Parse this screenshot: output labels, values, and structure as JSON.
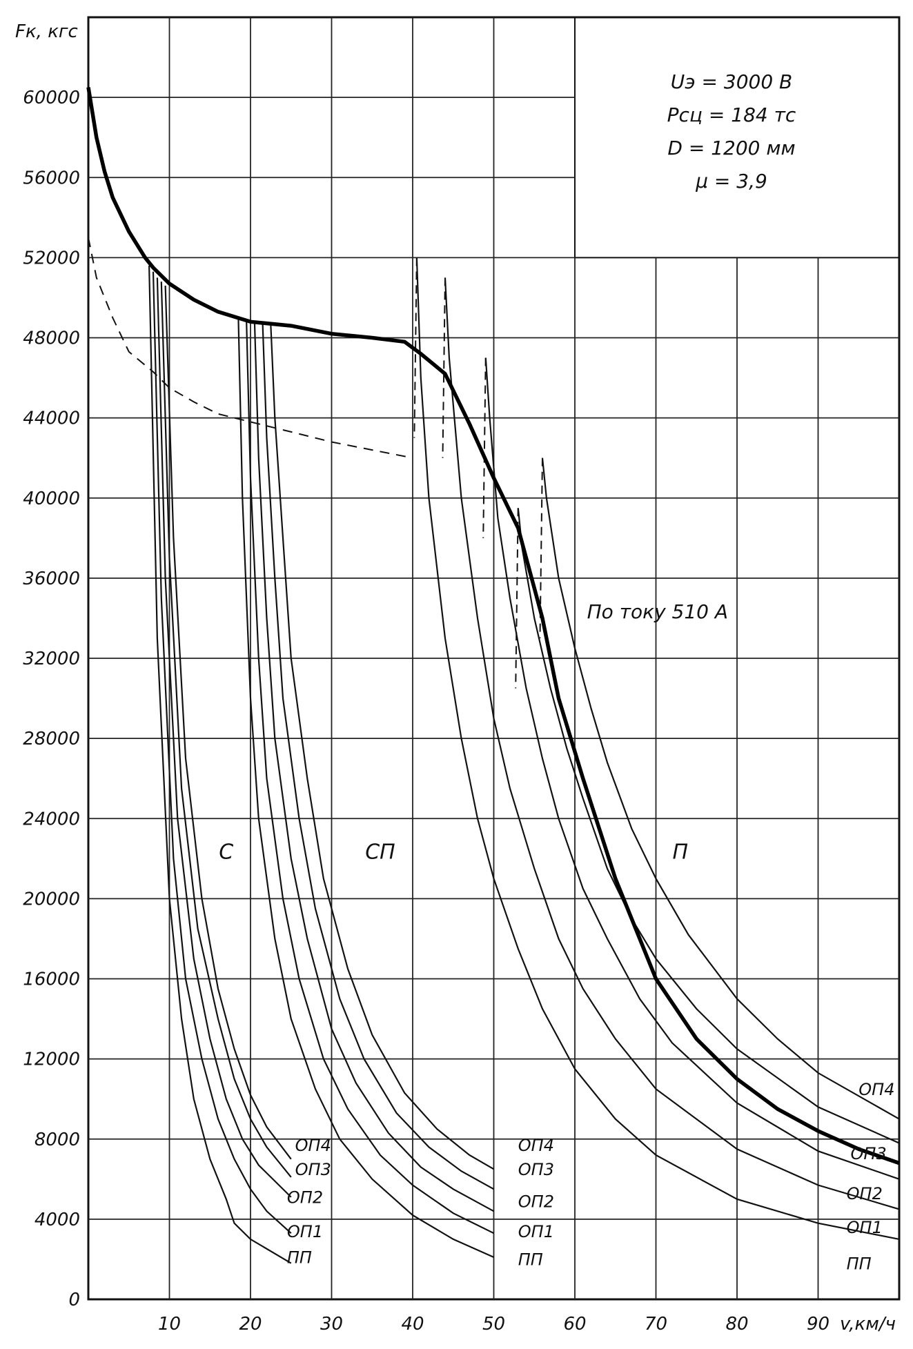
{
  "chart_data": {
    "type": "line",
    "title": "",
    "xlabel": "v,км/ч",
    "ylabel": "Fк, кгс",
    "xlim": [
      0,
      100
    ],
    "ylim": [
      0,
      64000
    ],
    "grid": true,
    "x_ticks": [
      "10",
      "20",
      "30",
      "40",
      "50",
      "60",
      "70",
      "80",
      "90"
    ],
    "y_ticks": [
      "0",
      "4000",
      "8000",
      "12000",
      "16000",
      "20000",
      "24000",
      "28000",
      "32000",
      "36000",
      "40000",
      "44000",
      "48000",
      "52000",
      "56000",
      "60000"
    ],
    "parameters": [
      "Uэ = 3000 В",
      "Pсц = 184 тс",
      "D = 1200 мм",
      "μ = 3,9"
    ],
    "annotations": {
      "current_limit": "По току 510 А"
    },
    "regions": [
      {
        "label": "С",
        "x": 17,
        "y": 22000
      },
      {
        "label": "СП",
        "x": 36,
        "y": 22000
      },
      {
        "label": "П",
        "x": 73,
        "y": 22000
      }
    ],
    "limit_curve": {
      "x": [
        0,
        1,
        2,
        3,
        5,
        7,
        8,
        10,
        13,
        16,
        20,
        25,
        30,
        35,
        39,
        41,
        44,
        47,
        50,
        53,
        56,
        58,
        61,
        65,
        70,
        75,
        80,
        85,
        90,
        95,
        100
      ],
      "y": [
        60500,
        58000,
        56300,
        55000,
        53300,
        52000,
        51500,
        50700,
        49900,
        49300,
        48800,
        48600,
        48200,
        48000,
        47800,
        47200,
        46200,
        43700,
        41000,
        38500,
        34000,
        30000,
        26000,
        21000,
        16000,
        13000,
        11000,
        9500,
        8400,
        7500,
        6800
      ]
    },
    "dashed_curve": {
      "x": [
        0,
        1,
        3,
        5,
        8,
        10,
        13,
        16,
        20,
        25,
        30,
        35,
        40
      ],
      "y": [
        53000,
        51000,
        49000,
        47300,
        46300,
        45500,
        44800,
        44200,
        43800,
        43300,
        42800,
        42400,
        42000
      ]
    },
    "groups": [
      {
        "name": "С",
        "curves": [
          {
            "name": "ПП",
            "x": [
              7.5,
              8.5,
              10,
              11.5,
              13,
              15,
              17,
              18,
              20,
              25
            ],
            "y": [
              51600,
              33000,
              20000,
              14000,
              10000,
              7000,
              5000,
              3800,
              3000,
              1800
            ]
          },
          {
            "name": "ОП1",
            "x": [
              8,
              9,
              10.5,
              12,
              14,
              16,
              18,
              20,
              22,
              25
            ],
            "y": [
              51300,
              35000,
              22000,
              16000,
              12000,
              9000,
              7000,
              5500,
              4400,
              3300
            ]
          },
          {
            "name": "ОП2",
            "x": [
              8.5,
              9.5,
              11,
              13,
              15,
              17,
              19,
              21,
              25
            ],
            "y": [
              51000,
              36000,
              24000,
              17000,
              13000,
              10000,
              8000,
              6700,
              5100
            ]
          },
          {
            "name": "ОП3",
            "x": [
              9,
              10,
              11.5,
              13.5,
              16,
              18,
              20,
              22,
              25
            ],
            "y": [
              50800,
              37000,
              25500,
              18500,
              14000,
              11000,
              9000,
              7600,
              6100
            ]
          },
          {
            "name": "ОП4",
            "x": [
              9.5,
              10.5,
              12,
              14,
              16,
              18,
              20,
              22,
              25
            ],
            "y": [
              50600,
              38000,
              27000,
              20000,
              15500,
              12500,
              10200,
              8600,
              7000
            ]
          }
        ]
      },
      {
        "name": "СП",
        "curves": [
          {
            "name": "ПП",
            "x": [
              18.5,
              19,
              20,
              21,
              23,
              25,
              28,
              31,
              35,
              40,
              45,
              50
            ],
            "y": [
              49000,
              40000,
              30000,
              24000,
              18000,
              14000,
              10500,
              8000,
              6000,
              4200,
              3000,
              2100
            ]
          },
          {
            "name": "ОП1",
            "x": [
              19.5,
              20,
              21,
              22,
              24,
              26,
              29,
              32,
              36,
              40,
              45,
              50
            ],
            "y": [
              48900,
              41000,
              32000,
              26000,
              20000,
              16000,
              12000,
              9500,
              7200,
              5700,
              4300,
              3300
            ]
          },
          {
            "name": "ОП2",
            "x": [
              20.5,
              21,
              22,
              23,
              25,
              27,
              30,
              33,
              37,
              41,
              45,
              50
            ],
            "y": [
              48800,
              42000,
              34000,
              28000,
              22000,
              18000,
              13500,
              10800,
              8300,
              6600,
              5500,
              4400
            ]
          },
          {
            "name": "ОП3",
            "x": [
              21.5,
              22,
              23,
              24,
              26,
              28,
              31,
              34,
              38,
              42,
              46,
              50
            ],
            "y": [
              48700,
              43000,
              36000,
              30000,
              24000,
              19500,
              15000,
              12000,
              9300,
              7600,
              6400,
              5500
            ]
          },
          {
            "name": "ОП4",
            "x": [
              22.5,
              23,
              24,
              25,
              27,
              29,
              32,
              35,
              39,
              43,
              47,
              50
            ],
            "y": [
              48600,
              44000,
              38000,
              32000,
              26000,
              21000,
              16500,
              13200,
              10300,
              8500,
              7200,
              6500
            ]
          }
        ]
      },
      {
        "name": "П",
        "curves": [
          {
            "name": "ПП",
            "x": [
              40.5,
              41,
              42,
              44,
              46,
              48,
              50,
              53,
              56,
              60,
              65,
              70,
              80,
              90,
              100
            ],
            "y": [
              52000,
              46000,
              40000,
              33000,
              28000,
              24000,
              21000,
              17500,
              14500,
              11500,
              9000,
              7200,
              5000,
              3800,
              3000
            ]
          },
          {
            "name": "ОП1",
            "x": [
              44,
              44.5,
              46,
              48,
              50,
              52,
              55,
              58,
              61,
              65,
              70,
              80,
              90,
              100
            ],
            "y": [
              51000,
              47000,
              40000,
              34000,
              29000,
              25500,
              21500,
              18000,
              15500,
              13000,
              10500,
              7500,
              5700,
              4500
            ]
          },
          {
            "name": "ОП2",
            "x": [
              49,
              49.5,
              50.5,
              52,
              54,
              56,
              58,
              61,
              64,
              68,
              72,
              80,
              90,
              100
            ],
            "y": [
              47000,
              44000,
              39000,
              35000,
              30500,
              27000,
              24000,
              20500,
              18000,
              15000,
              12800,
              9800,
              7400,
              6000
            ]
          },
          {
            "name": "ОП3",
            "x": [
              53,
              53.5,
              55,
              57,
              59,
              61,
              64,
              67,
              70,
              75,
              80,
              90,
              100
            ],
            "y": [
              39500,
              37500,
              34000,
              30500,
              27500,
              25000,
              21500,
              19000,
              17000,
              14500,
              12500,
              9600,
              7800
            ]
          },
          {
            "name": "ОП4",
            "x": [
              56,
              56.5,
              58,
              60,
              62,
              64,
              67,
              70,
              74,
              80,
              85,
              90,
              100
            ],
            "y": [
              42000,
              40000,
              36000,
              32500,
              29500,
              26800,
              23500,
              21000,
              18200,
              15000,
              13000,
              11300,
              9000
            ]
          }
        ]
      }
    ],
    "curve_labels": [
      {
        "text": "ОП4",
        "x": 25.5,
        "y": 7400
      },
      {
        "text": "ОП3",
        "x": 25.5,
        "y": 6200
      },
      {
        "text": "ОП2",
        "x": 24.5,
        "y": 4800
      },
      {
        "text": "ОП1",
        "x": 24.5,
        "y": 3100
      },
      {
        "text": "ПП",
        "x": 24.5,
        "y": 1800
      },
      {
        "text": "ОП4",
        "x": 53,
        "y": 7400
      },
      {
        "text": "ОП3",
        "x": 53,
        "y": 6200
      },
      {
        "text": "ОП2",
        "x": 53,
        "y": 4600
      },
      {
        "text": "ОП1",
        "x": 53,
        "y": 3100
      },
      {
        "text": "ПП",
        "x": 53,
        "y": 1700
      },
      {
        "text": "ОП4",
        "x": 95,
        "y": 10200
      },
      {
        "text": "ОП3",
        "x": 94,
        "y": 7000
      },
      {
        "text": "ОП2",
        "x": 93.5,
        "y": 5000
      },
      {
        "text": "ОП1",
        "x": 93.5,
        "y": 3300
      },
      {
        "text": "ПП",
        "x": 93.5,
        "y": 1500
      }
    ]
  }
}
